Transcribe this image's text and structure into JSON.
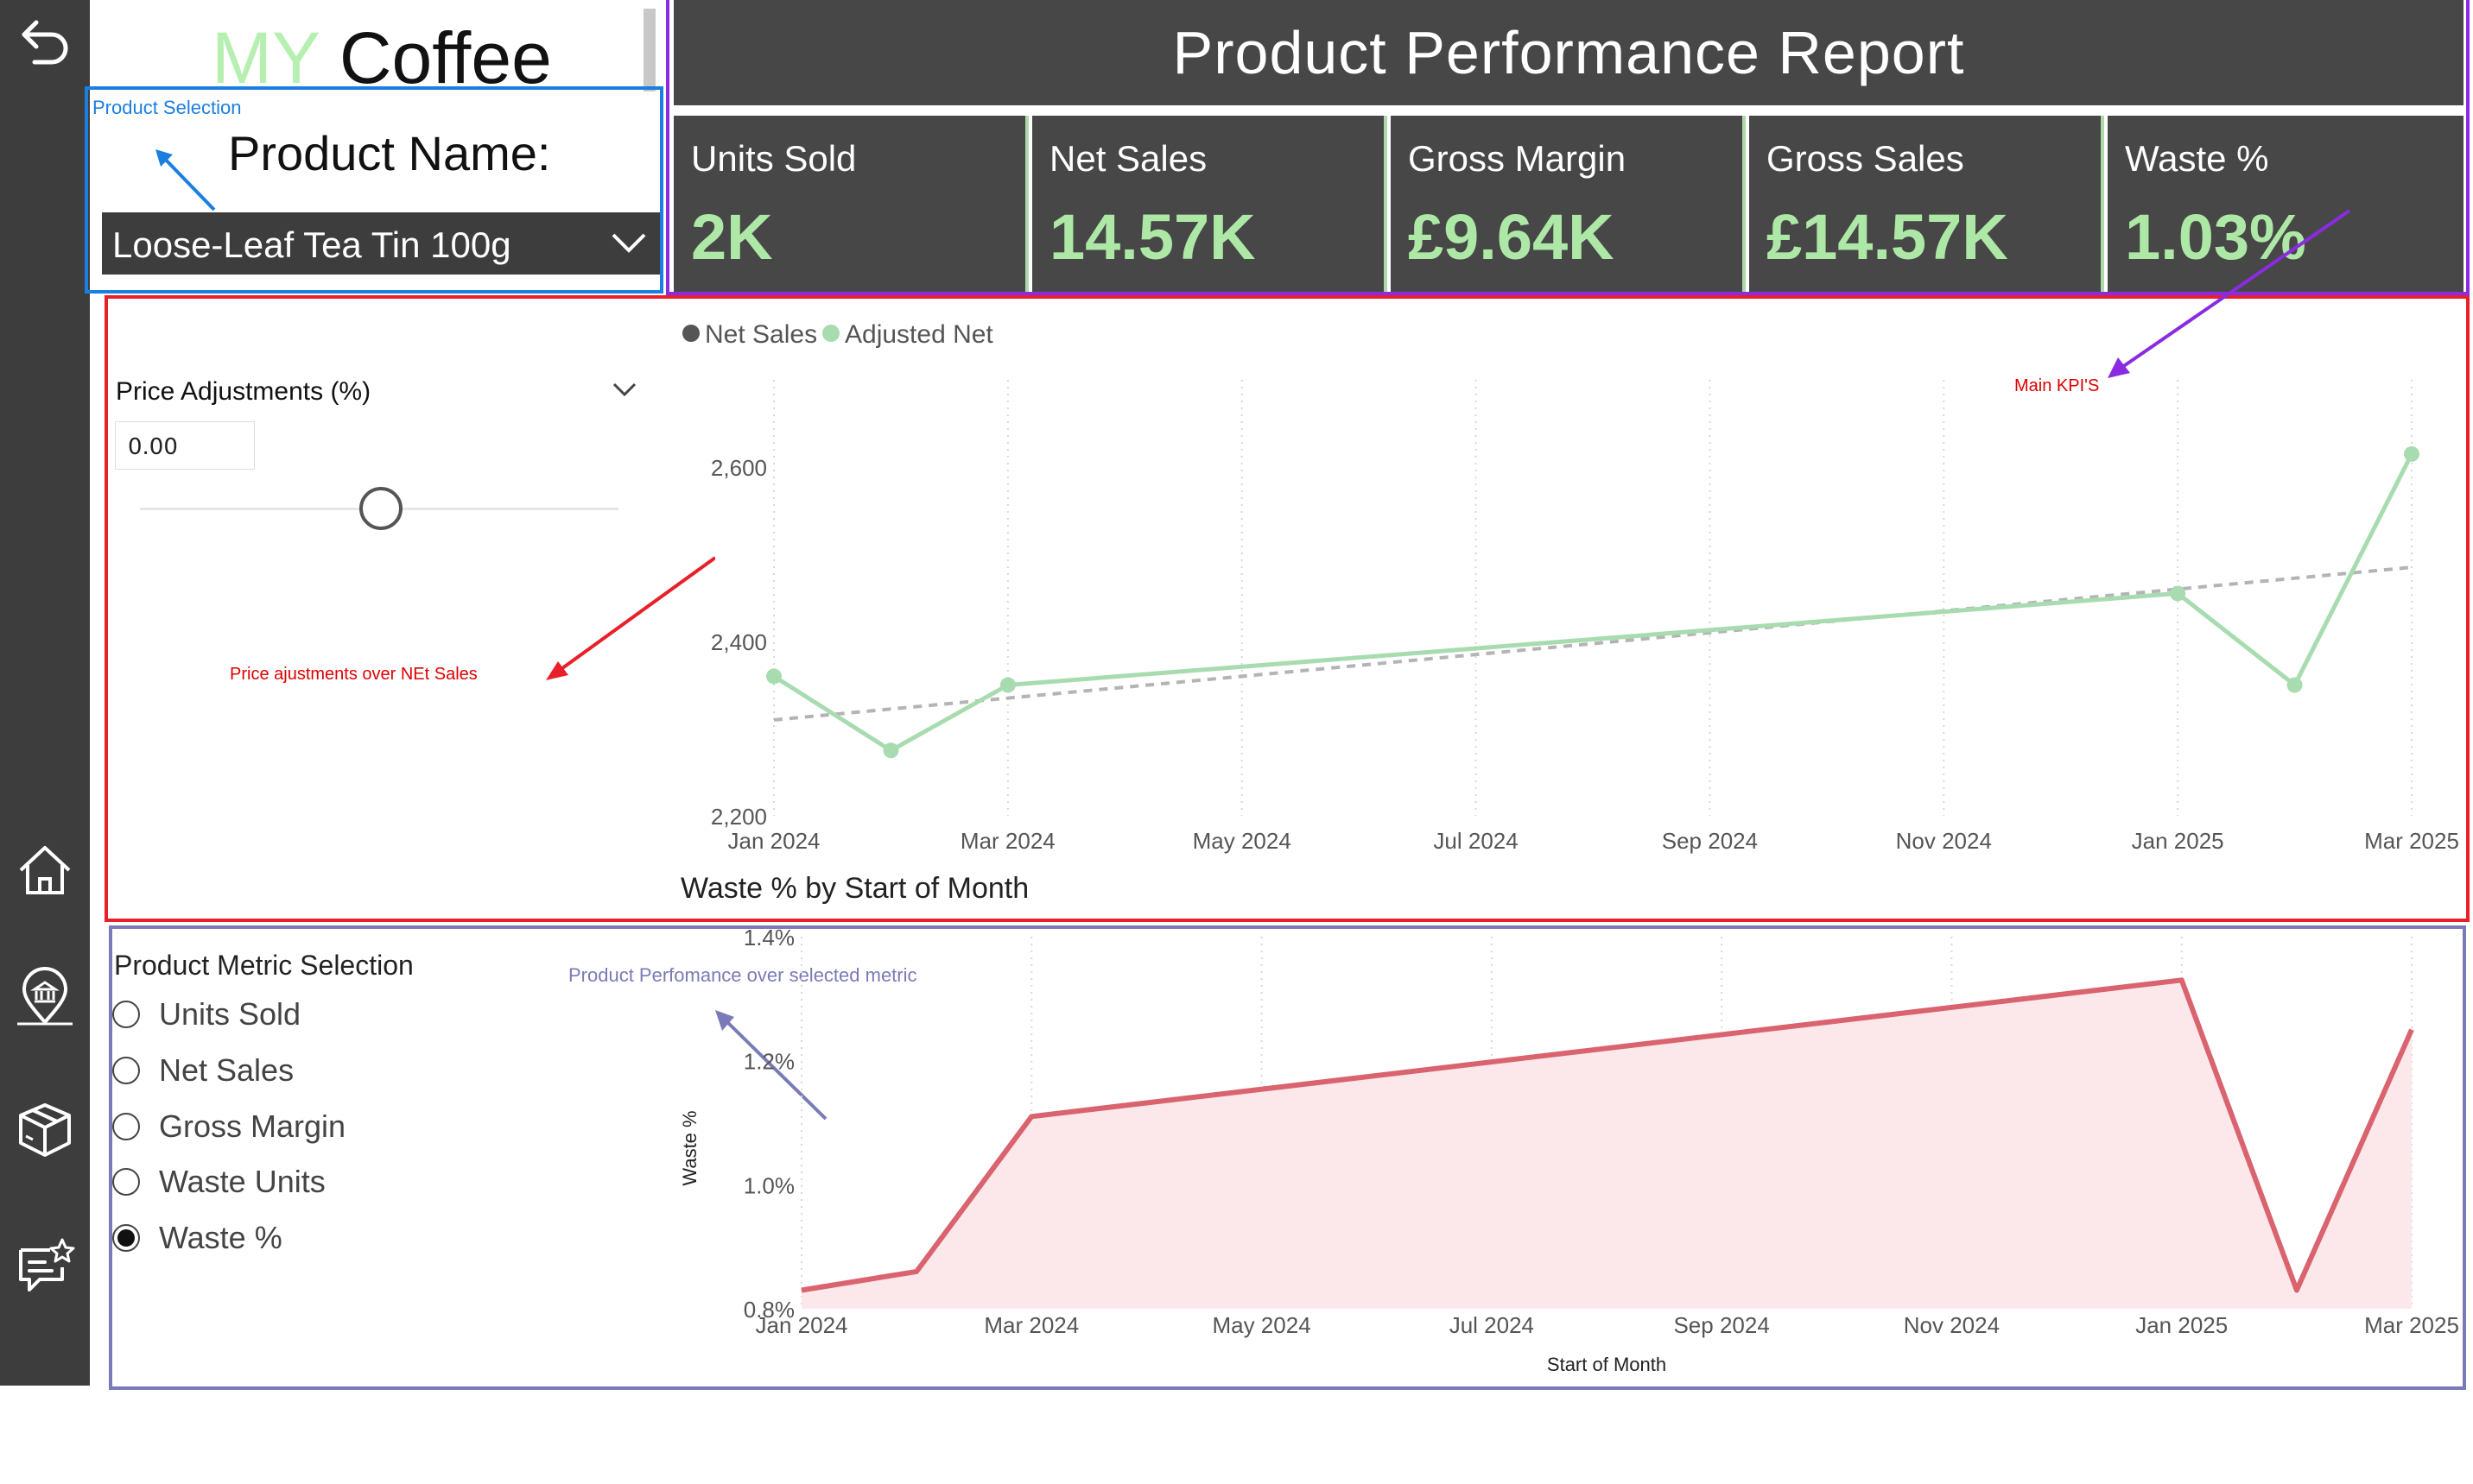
{
  "brand": {
    "my": "MY",
    "coffee": "Coffee"
  },
  "header": {
    "title": "Product  Performance Report"
  },
  "product_selection": {
    "annotation": "Product Selection",
    "label": "Product Name:",
    "selected": "Loose-Leaf Tea Tin 100g"
  },
  "kpis": [
    {
      "label": "Units Sold",
      "value": "2K"
    },
    {
      "label": "Net Sales",
      "value": "14.57K"
    },
    {
      "label": "Gross Margin",
      "value": "£9.64K"
    },
    {
      "label": "Gross Sales",
      "value": "£14.57K"
    },
    {
      "label": "Waste %",
      "value": "1.03%"
    }
  ],
  "annotations": {
    "main_kpis": "Main KPI'S",
    "price_adj": "Price ajustments over NEt Sales",
    "metric": "Product Perfomance over selected metric"
  },
  "price_adjustments": {
    "label": "Price Adjustments (%)",
    "value": "0.00",
    "slider_fraction": 0.5
  },
  "metric_selection": {
    "title": "Product Metric Selection",
    "options": [
      "Units Sold",
      "Net Sales",
      "Gross Margin",
      "Waste Units",
      "Waste %"
    ],
    "selected": "Waste %"
  },
  "colors": {
    "accent_green": "#aee8a6",
    "line_green": "#a8dcb0",
    "waste_red": "#d9636e",
    "waste_fill": "#fce8ea",
    "frame_blue": "#1a7fe0",
    "frame_purple": "#8a2be2",
    "frame_red": "#e8202a",
    "frame_slate": "#7a7ab8"
  },
  "chart_data": [
    {
      "type": "line",
      "legend": [
        "Net Sales",
        "Adjusted Net"
      ],
      "legend_position": "top-left",
      "x": [
        "2024-01",
        "2024-02",
        "2024-03",
        "2024-04",
        "2024-05",
        "2024-06",
        "2024-07",
        "2024-08",
        "2024-09",
        "2024-10",
        "2024-11",
        "2024-12",
        "2025-01",
        "2025-02",
        "2025-03"
      ],
      "x_tick_labels": [
        "Jan 2024",
        "Mar 2024",
        "May 2024",
        "Jul 2024",
        "Sep 2024",
        "Nov 2024",
        "Jan 2025",
        "Mar 2025"
      ],
      "series": [
        {
          "name": "Adjusted Net",
          "values": [
            2360,
            2275,
            2350,
            null,
            null,
            null,
            null,
            null,
            null,
            null,
            null,
            null,
            2455,
            2350,
            2615
          ]
        }
      ],
      "trendline": {
        "start": 2310,
        "end": 2485
      },
      "y_ticks": [
        "2,200",
        "2,400",
        "2,600"
      ],
      "ylim": [
        2200,
        2700
      ],
      "grid": "vertical-dotted"
    },
    {
      "type": "area",
      "title": "Waste % by Start of Month",
      "xlabel": "Start of Month",
      "ylabel": "Waste %",
      "x": [
        "2024-01",
        "2024-02",
        "2024-03",
        "2024-04",
        "2024-05",
        "2024-06",
        "2024-07",
        "2024-08",
        "2024-09",
        "2024-10",
        "2024-11",
        "2024-12",
        "2025-01",
        "2025-02",
        "2025-03"
      ],
      "x_tick_labels": [
        "Jan 2024",
        "Mar 2024",
        "May 2024",
        "Jul 2024",
        "Sep 2024",
        "Nov 2024",
        "Jan 2025",
        "Mar 2025"
      ],
      "series": [
        {
          "name": "Waste %",
          "values": [
            0.83,
            0.86,
            1.11,
            null,
            null,
            null,
            null,
            null,
            null,
            null,
            null,
            null,
            1.33,
            0.83,
            1.25
          ]
        }
      ],
      "y_ticks": [
        "0.8%",
        "1.0%",
        "1.2%",
        "1.4%"
      ],
      "ylim": [
        0.8,
        1.4
      ],
      "grid": "vertical-dotted"
    }
  ]
}
